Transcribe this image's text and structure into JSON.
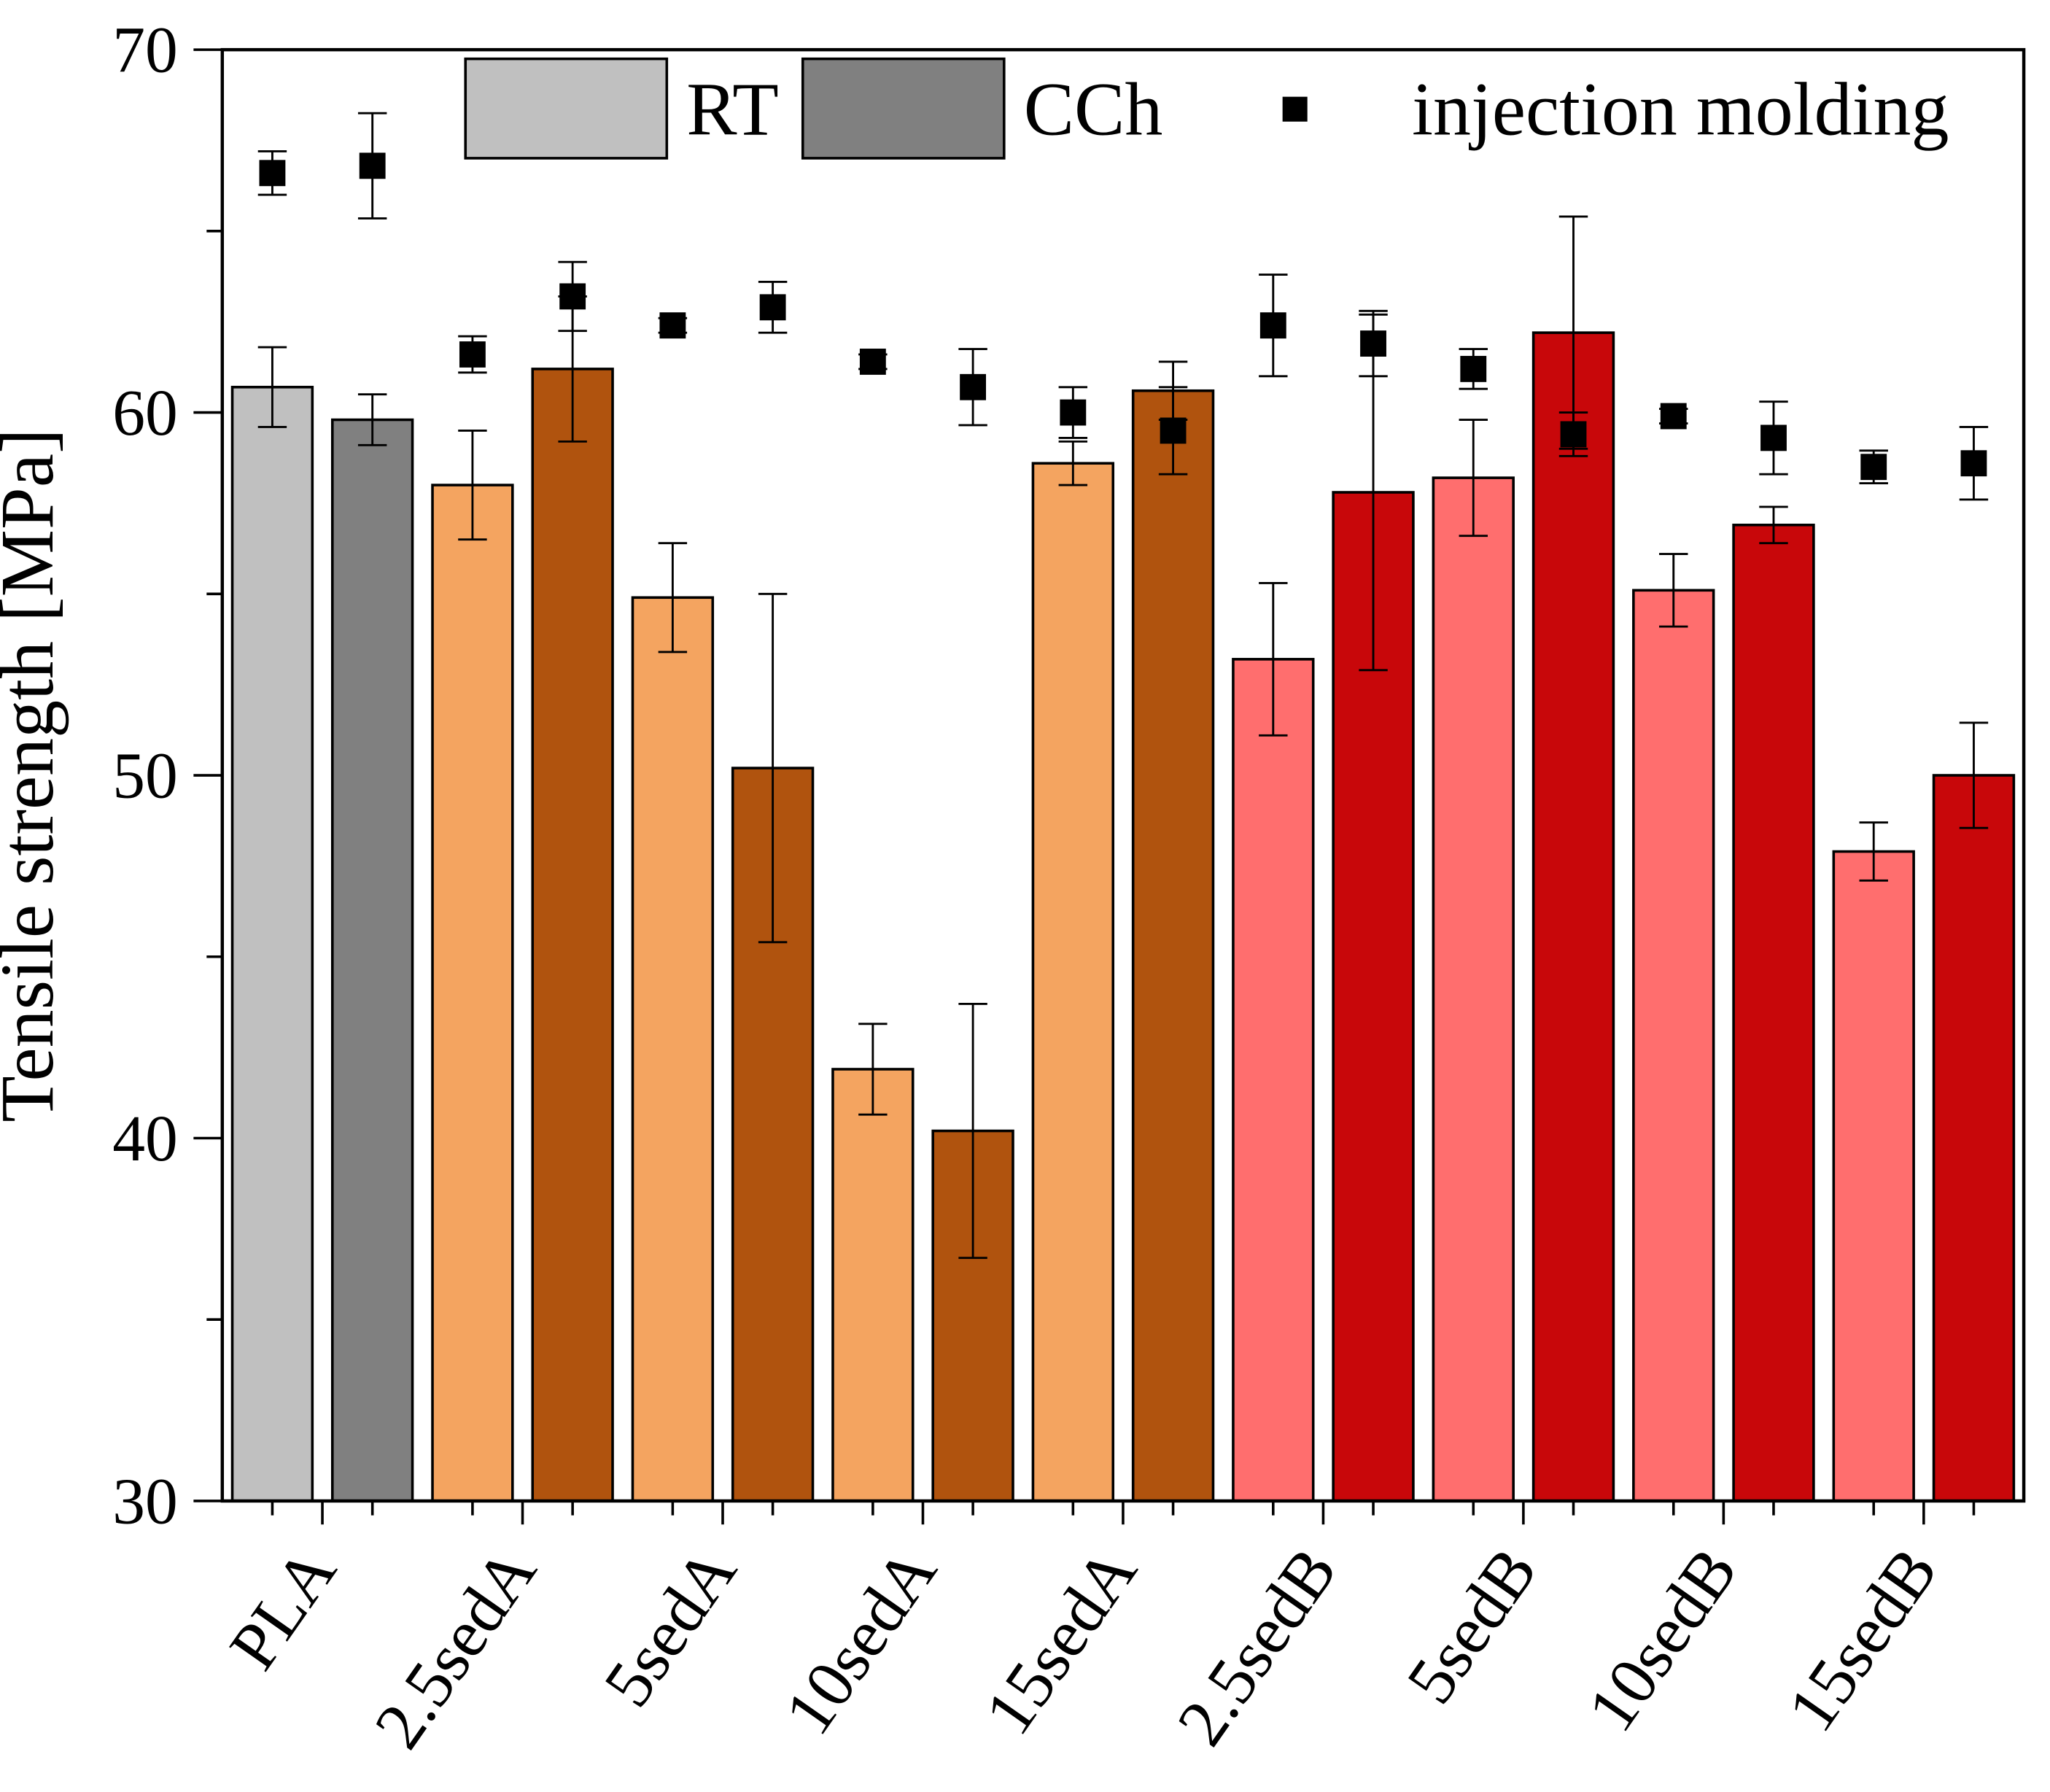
{
  "chart_data": {
    "type": "bar",
    "ylabel": "Tensile strength [MPa]",
    "ylim": [
      30,
      70
    ],
    "yticks": [
      30,
      40,
      50,
      60,
      70
    ],
    "categories": [
      "PLA",
      "2.5sedA",
      "5sedA",
      "10sedA",
      "15sedA",
      "2.5sedB",
      "5sedB",
      "10sedB",
      "15sedB"
    ],
    "bar_colors": [
      [
        "#c0c0c0",
        "#808080"
      ],
      [
        "#f4a460",
        "#b0530e"
      ],
      [
        "#f4a460",
        "#b0530e"
      ],
      [
        "#f4a460",
        "#b0530e"
      ],
      [
        "#f4a460",
        "#b0530e"
      ],
      [
        "#ff6e6e",
        "#c8070a"
      ],
      [
        "#ff6e6e",
        "#c8070a"
      ],
      [
        "#ff6e6e",
        "#c8070a"
      ],
      [
        "#ff6e6e",
        "#c8070a"
      ]
    ],
    "series": [
      {
        "name": "RT",
        "type": "bar",
        "values": [
          60.7,
          58.0,
          54.9,
          41.9,
          58.6,
          53.2,
          58.2,
          55.1,
          47.9
        ],
        "errors": [
          1.1,
          1.5,
          1.5,
          1.25,
          0.6,
          2.1,
          1.6,
          1.0,
          0.8
        ]
      },
      {
        "name": "CCh",
        "type": "bar",
        "values": [
          59.8,
          61.2,
          50.2,
          40.2,
          60.6,
          57.8,
          62.2,
          56.9,
          50.0
        ],
        "errors": [
          0.7,
          2.0,
          4.8,
          3.5,
          0.8,
          4.9,
          3.2,
          0.5,
          1.45
        ]
      },
      {
        "name": "injection molding",
        "type": "scatter",
        "marker": "square",
        "values": [
          [
            66.6,
            66.8
          ],
          [
            61.6,
            63.2
          ],
          [
            62.4,
            62.9
          ],
          [
            61.4,
            60.7
          ],
          [
            60.0,
            59.5
          ],
          [
            62.4,
            61.9
          ],
          [
            61.2,
            59.4
          ],
          [
            59.9,
            59.3
          ],
          [
            58.5,
            58.6
          ]
        ],
        "errors": [
          [
            0.6,
            1.45
          ],
          [
            0.5,
            0.95
          ],
          [
            0.2,
            0.7
          ],
          [
            0.2,
            1.05
          ],
          [
            0.7,
            1.2
          ],
          [
            1.4,
            0.9
          ],
          [
            0.55,
            0.6
          ],
          [
            0.2,
            1.0
          ],
          [
            0.45,
            1.0
          ]
        ]
      }
    ],
    "legend": [
      {
        "label": "RT",
        "color": "#c0c0c0"
      },
      {
        "label": "CCh",
        "color": "#808080"
      },
      {
        "label": "injection molding",
        "color": "#000000"
      }
    ],
    "legend_placement": "top"
  }
}
